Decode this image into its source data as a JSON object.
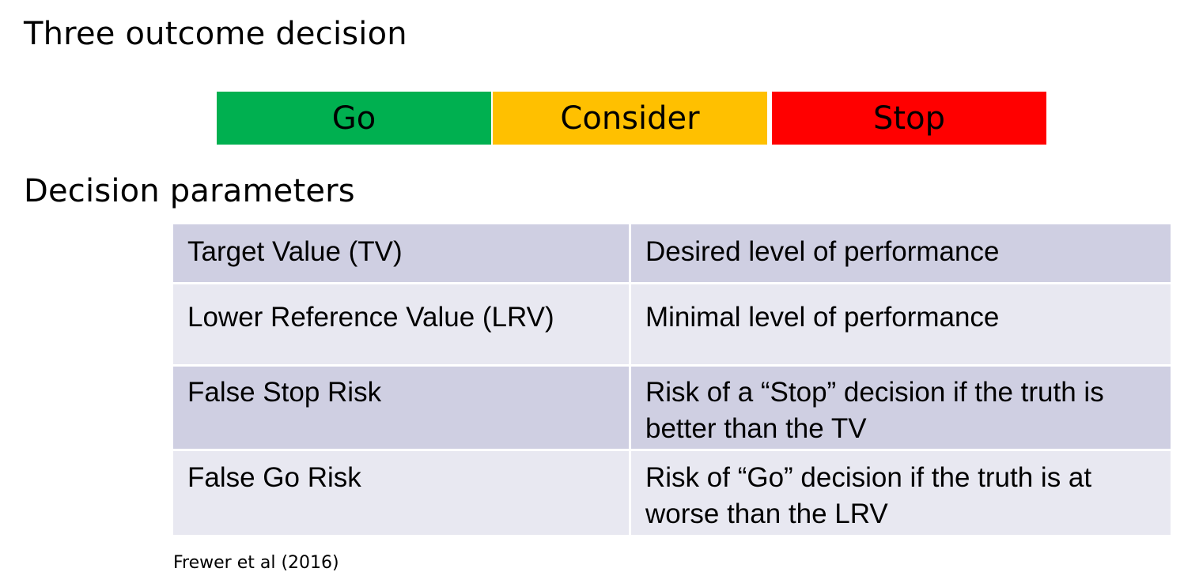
{
  "title": "Three outcome decision",
  "outcomes": [
    {
      "label": "Go",
      "color": "#00b050"
    },
    {
      "label": "Consider",
      "color": "#ffc000"
    },
    {
      "label": "Stop",
      "color": "#ff0000"
    }
  ],
  "section_title": "Decision parameters",
  "parameters": [
    {
      "term": "Target Value (TV)",
      "definition": "Desired level of performance"
    },
    {
      "term": "Lower Reference Value (LRV)",
      "definition": "Minimal level of performance"
    },
    {
      "term": "False Stop Risk",
      "definition": "Risk of a “Stop” decision if the truth is better than the TV"
    },
    {
      "term": "False Go Risk",
      "definition": "Risk of “Go” decision if the truth is at worse than the LRV"
    }
  ],
  "citation": "Frewer et al (2016)",
  "colors": {
    "table_row_dark": "#cfcfe2",
    "table_row_light": "#e8e8f1"
  }
}
